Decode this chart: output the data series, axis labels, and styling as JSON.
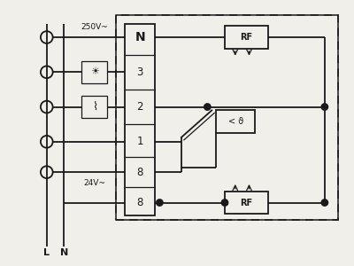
{
  "bg_color": "#f0efea",
  "line_color": "#1a1a1a",
  "lw": 1.3,
  "lw_thin": 0.9,
  "label_250V": "250V~",
  "label_24V": "24V~",
  "label_L": "L",
  "label_N": "N",
  "label_RF": "RF",
  "label_theta": "< ϑ",
  "terminals": [
    "N",
    "3",
    "2",
    "1",
    "8",
    "8"
  ],
  "terminal_N_bold": true
}
